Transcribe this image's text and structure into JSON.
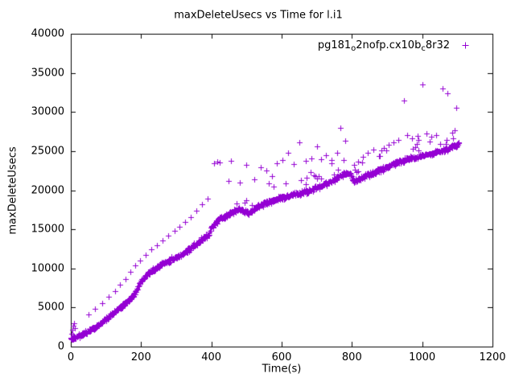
{
  "chart_data": {
    "type": "scatter",
    "title": "maxDeleteUsecs vs Time for l.i1",
    "xlabel": "Time(s)",
    "ylabel": "maxDeleteUsecs",
    "xlim": [
      0,
      1200
    ],
    "ylim": [
      0,
      40000
    ],
    "xticks": [
      0,
      200,
      400,
      600,
      800,
      1000,
      1200
    ],
    "yticks": [
      0,
      5000,
      10000,
      15000,
      20000,
      25000,
      30000,
      35000,
      40000
    ],
    "grid": false,
    "legend_position": "top-right-inside",
    "background": "#ffffff",
    "text_color": "#000000",
    "series": [
      {
        "name": "pg181o2nofp.cx10bc8r32",
        "name_parts": [
          {
            "text": "pg181"
          },
          {
            "text": "o",
            "sub": true
          },
          {
            "text": "2nofp.cx10b"
          },
          {
            "text": "c",
            "sub": true
          },
          {
            "text": "8r32"
          }
        ],
        "color": "#9400D3",
        "marker": "plus",
        "x_max_data": 1105,
        "band_step": 1.1,
        "band_jitter": 420,
        "upper_scatter": {
          "start_x": 430,
          "probability": 0.06,
          "min_offset": 700,
          "max_offset": 2400
        },
        "trend": [
          [
            0,
            1000
          ],
          [
            20,
            1350
          ],
          [
            40,
            1750
          ],
          [
            60,
            2250
          ],
          [
            80,
            2850
          ],
          [
            100,
            3550
          ],
          [
            120,
            4250
          ],
          [
            140,
            4950
          ],
          [
            160,
            5750
          ],
          [
            180,
            6650
          ],
          [
            200,
            8400
          ],
          [
            215,
            9100
          ],
          [
            230,
            9700
          ],
          [
            250,
            10300
          ],
          [
            270,
            10800
          ],
          [
            290,
            11200
          ],
          [
            310,
            11600
          ],
          [
            330,
            12200
          ],
          [
            350,
            12900
          ],
          [
            370,
            13600
          ],
          [
            385,
            14100
          ],
          [
            395,
            14400
          ],
          [
            400,
            15300
          ],
          [
            415,
            16000
          ],
          [
            430,
            16500
          ],
          [
            445,
            16900
          ],
          [
            460,
            17200
          ],
          [
            475,
            17500
          ],
          [
            490,
            17400
          ],
          [
            505,
            17100
          ],
          [
            515,
            17300
          ],
          [
            530,
            17800
          ],
          [
            550,
            18300
          ],
          [
            575,
            18700
          ],
          [
            600,
            19000
          ],
          [
            630,
            19400
          ],
          [
            660,
            19700
          ],
          [
            690,
            20100
          ],
          [
            720,
            20700
          ],
          [
            750,
            21300
          ],
          [
            765,
            21800
          ],
          [
            780,
            22100
          ],
          [
            795,
            22200
          ],
          [
            802,
            21200
          ],
          [
            815,
            21300
          ],
          [
            830,
            21700
          ],
          [
            850,
            22000
          ],
          [
            880,
            22600
          ],
          [
            910,
            23200
          ],
          [
            940,
            23700
          ],
          [
            970,
            24100
          ],
          [
            1000,
            24400
          ],
          [
            1030,
            24700
          ],
          [
            1060,
            25100
          ],
          [
            1090,
            25600
          ],
          [
            1105,
            25900
          ]
        ],
        "outliers": [
          [
            2,
            1600
          ],
          [
            4,
            2200
          ],
          [
            6,
            2700
          ],
          [
            9,
            3000
          ],
          [
            12,
            2400
          ],
          [
            50,
            4100
          ],
          [
            68,
            4800
          ],
          [
            90,
            5600
          ],
          [
            108,
            6400
          ],
          [
            125,
            7100
          ],
          [
            140,
            7900
          ],
          [
            155,
            8600
          ],
          [
            170,
            9600
          ],
          [
            183,
            10400
          ],
          [
            196,
            11000
          ],
          [
            212,
            11700
          ],
          [
            230,
            12400
          ],
          [
            246,
            13000
          ],
          [
            262,
            13600
          ],
          [
            278,
            14200
          ],
          [
            295,
            14800
          ],
          [
            310,
            15300
          ],
          [
            326,
            15900
          ],
          [
            342,
            16600
          ],
          [
            358,
            17400
          ],
          [
            374,
            18200
          ],
          [
            390,
            18900
          ],
          [
            408,
            23400
          ],
          [
            416,
            23600
          ],
          [
            423,
            23500
          ],
          [
            448,
            21200
          ],
          [
            456,
            23800
          ],
          [
            480,
            21000
          ],
          [
            500,
            23200
          ],
          [
            522,
            21400
          ],
          [
            540,
            22900
          ],
          [
            557,
            22500
          ],
          [
            572,
            21800
          ],
          [
            586,
            23400
          ],
          [
            602,
            23900
          ],
          [
            618,
            24800
          ],
          [
            634,
            23300
          ],
          [
            650,
            26100
          ],
          [
            668,
            23800
          ],
          [
            684,
            24100
          ],
          [
            700,
            25600
          ],
          [
            712,
            24000
          ],
          [
            726,
            24500
          ],
          [
            742,
            23900
          ],
          [
            758,
            24800
          ],
          [
            768,
            28000
          ],
          [
            780,
            26300
          ],
          [
            806,
            23200
          ],
          [
            818,
            23600
          ],
          [
            832,
            24300
          ],
          [
            846,
            24800
          ],
          [
            862,
            25200
          ],
          [
            876,
            24400
          ],
          [
            890,
            25400
          ],
          [
            904,
            25800
          ],
          [
            918,
            26100
          ],
          [
            932,
            26400
          ],
          [
            948,
            31500
          ],
          [
            958,
            27000
          ],
          [
            972,
            26600
          ],
          [
            986,
            26900
          ],
          [
            1000,
            33500
          ],
          [
            1012,
            27200
          ],
          [
            1026,
            26800
          ],
          [
            1040,
            27000
          ],
          [
            1057,
            33000
          ],
          [
            1072,
            32400
          ],
          [
            1086,
            27400
          ],
          [
            1098,
            30500
          ]
        ]
      }
    ]
  }
}
